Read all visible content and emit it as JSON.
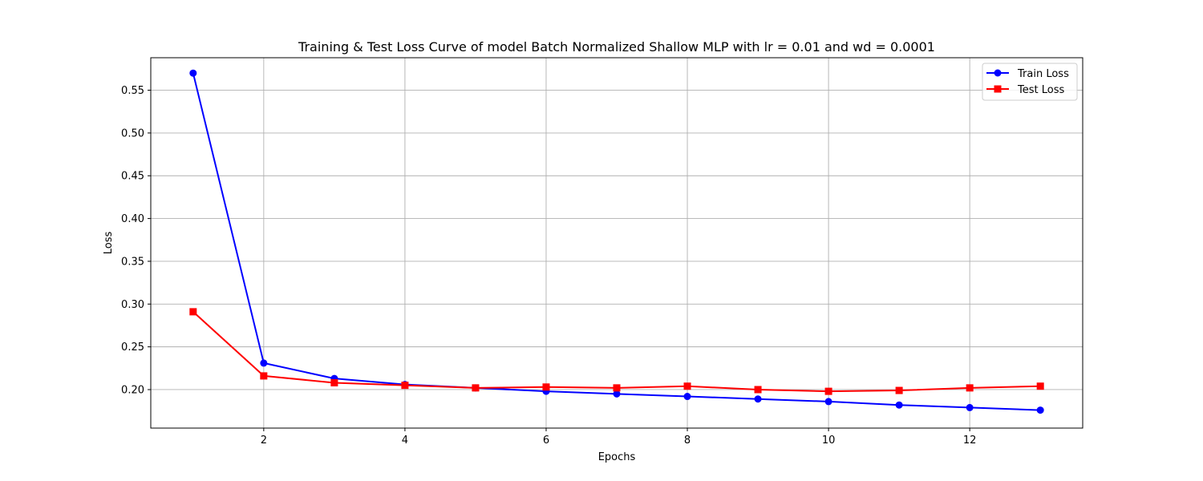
{
  "chart_data": {
    "type": "line",
    "title": "Training & Test Loss Curve of model Batch Normalized Shallow MLP with lr = 0.01 and wd = 0.0001",
    "xlabel": "Epochs",
    "ylabel": "Loss",
    "x": [
      1,
      2,
      3,
      4,
      5,
      6,
      7,
      8,
      9,
      10,
      11,
      12,
      13
    ],
    "xlim": [
      0.4,
      13.6
    ],
    "ylim": [
      0.155,
      0.588
    ],
    "xticks": [
      2,
      4,
      6,
      8,
      10,
      12
    ],
    "yticks": [
      0.2,
      0.25,
      0.3,
      0.35,
      0.4,
      0.45,
      0.5,
      0.55
    ],
    "xtick_labels": [
      "2",
      "4",
      "6",
      "8",
      "10",
      "12"
    ],
    "ytick_labels": [
      "0.20",
      "0.25",
      "0.30",
      "0.35",
      "0.40",
      "0.45",
      "0.50",
      "0.55"
    ],
    "grid": true,
    "legend_position": "top-right",
    "series": [
      {
        "name": "Train Loss",
        "color": "#0000ff",
        "marker": "circle",
        "values": [
          0.57,
          0.231,
          0.213,
          0.206,
          0.202,
          0.198,
          0.195,
          0.192,
          0.189,
          0.186,
          0.182,
          0.179,
          0.176
        ]
      },
      {
        "name": "Test Loss",
        "color": "#ff0000",
        "marker": "square",
        "values": [
          0.291,
          0.216,
          0.208,
          0.205,
          0.202,
          0.203,
          0.202,
          0.204,
          0.2,
          0.198,
          0.199,
          0.202,
          0.204
        ]
      }
    ]
  }
}
